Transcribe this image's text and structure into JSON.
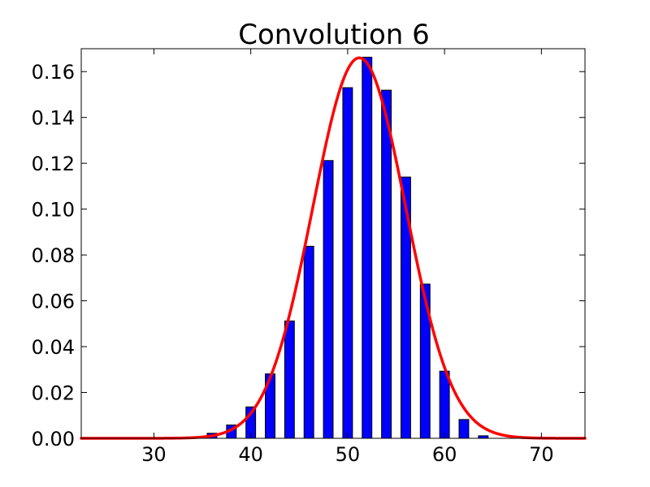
{
  "chart_data": {
    "type": "bar",
    "title": "Convolution 6",
    "xlabel": "",
    "ylabel": "",
    "xlim": [
      22.5,
      74.5
    ],
    "ylim": [
      0.0,
      0.17
    ],
    "grid": false,
    "x_ticks": [
      30,
      40,
      50,
      60,
      70
    ],
    "x_tick_labels": [
      "30",
      "40",
      "50",
      "60",
      "70"
    ],
    "y_ticks": [
      0.0,
      0.02,
      0.04,
      0.06,
      0.08,
      0.1,
      0.12,
      0.14,
      0.16
    ],
    "y_tick_labels": [
      "0.00",
      "0.02",
      "0.04",
      "0.06",
      "0.08",
      "0.10",
      "0.12",
      "0.14",
      "0.16"
    ],
    "bar_width": 1.0,
    "bars": {
      "x": [
        34,
        36,
        38,
        40,
        42,
        44,
        46,
        48,
        50,
        52,
        54,
        56,
        58,
        60,
        62,
        64
      ],
      "values": [
        0.0003,
        0.0022,
        0.0058,
        0.0137,
        0.0281,
        0.0512,
        0.0838,
        0.1212,
        0.153,
        0.1663,
        0.1519,
        0.114,
        0.0673,
        0.0293,
        0.0082,
        0.0011
      ],
      "color": "#0000ff"
    },
    "series": [
      {
        "type": "line",
        "color": "#ff0000",
        "mean": 51.2,
        "std": 4.8,
        "peak": 0.166,
        "x_range": [
          22.5,
          74.5
        ]
      }
    ]
  }
}
